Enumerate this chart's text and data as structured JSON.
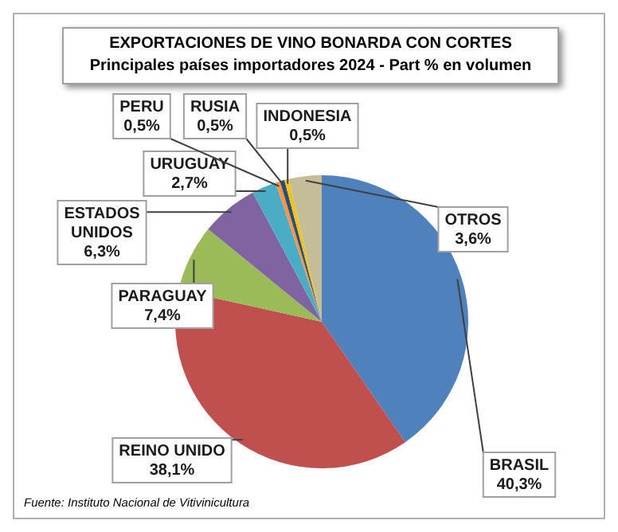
{
  "chart_data": {
    "type": "pie",
    "title": "EXPORTACIONES DE VINO BONARDA CON CORTES",
    "subtitle": "Principales países importadores 2024 - Part % en volumen",
    "categories": [
      "BRASIL",
      "REINO UNIDO",
      "PARAGUAY",
      "ESTADOS UNIDOS",
      "URUGUAY",
      "PERU",
      "RUSIA",
      "INDONESIA",
      "OTROS"
    ],
    "values": [
      40.3,
      38.1,
      7.4,
      6.3,
      2.7,
      0.5,
      0.5,
      0.5,
      3.6
    ],
    "value_labels": [
      "40,3%",
      "38,1%",
      "7,4%",
      "6,3%",
      "2,7%",
      "0,5%",
      "0,5%",
      "0,5%",
      "3,6%"
    ],
    "colors": [
      "#4f81bd",
      "#c0504d",
      "#9bbb59",
      "#8064a2",
      "#4bacc6",
      "#f79646",
      "#2c4d75",
      "#f2c314",
      "#c4bd97"
    ],
    "legend": false,
    "annotations": [
      "Fuente: Instituto Nacional de Vitivinicultura"
    ]
  }
}
